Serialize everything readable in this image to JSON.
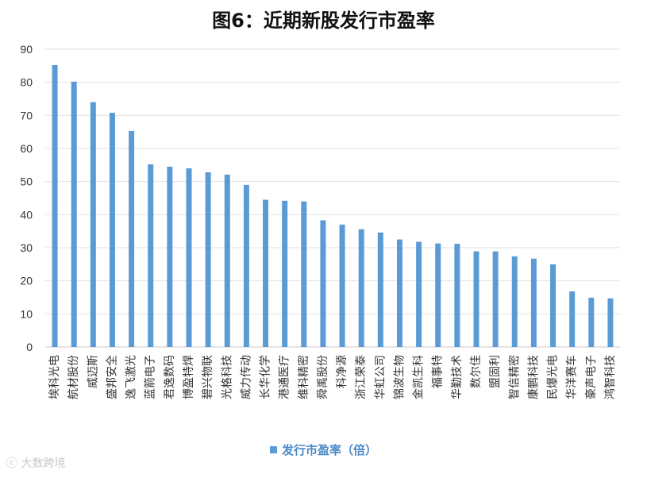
{
  "chart_data": {
    "type": "bar",
    "title": "图6：近期新股发行市盈率",
    "categories": [
      "埃科光电",
      "航材股份",
      "威迈斯",
      "盛邦安全",
      "逸飞激光",
      "蓝箭电子",
      "君逸数码",
      "博盈特焊",
      "碧兴物联",
      "光格科技",
      "威力传动",
      "长华化学",
      "港通医疗",
      "维科精密",
      "舜禹股份",
      "科净源",
      "浙江荣泰",
      "华虹公司",
      "锦波生物",
      "金凯生科",
      "福事特",
      "华勤技术",
      "数尔佳",
      "盟固利",
      "智信精密",
      "康鹏科技",
      "民爆光电",
      "华洋赛车",
      "豪声电子",
      "鸿智科技"
    ],
    "series": [
      {
        "name": "发行市盈率（倍）",
        "values": [
          85.2,
          80.2,
          74.0,
          70.8,
          65.3,
          55.2,
          54.5,
          54.0,
          52.8,
          52.1,
          49.0,
          44.5,
          44.2,
          44.0,
          38.3,
          37.0,
          35.6,
          34.6,
          32.5,
          31.8,
          31.3,
          31.2,
          28.9,
          28.9,
          27.4,
          26.7,
          25.0,
          16.8,
          14.9,
          14.7
        ]
      }
    ],
    "ylim": [
      0,
      90
    ],
    "yticks": [
      0,
      10,
      20,
      30,
      40,
      50,
      60,
      70,
      80,
      90
    ],
    "grid": true,
    "legend_position": "bottom",
    "bar_color": "#5b9bd5"
  },
  "watermark": "大数跨境"
}
